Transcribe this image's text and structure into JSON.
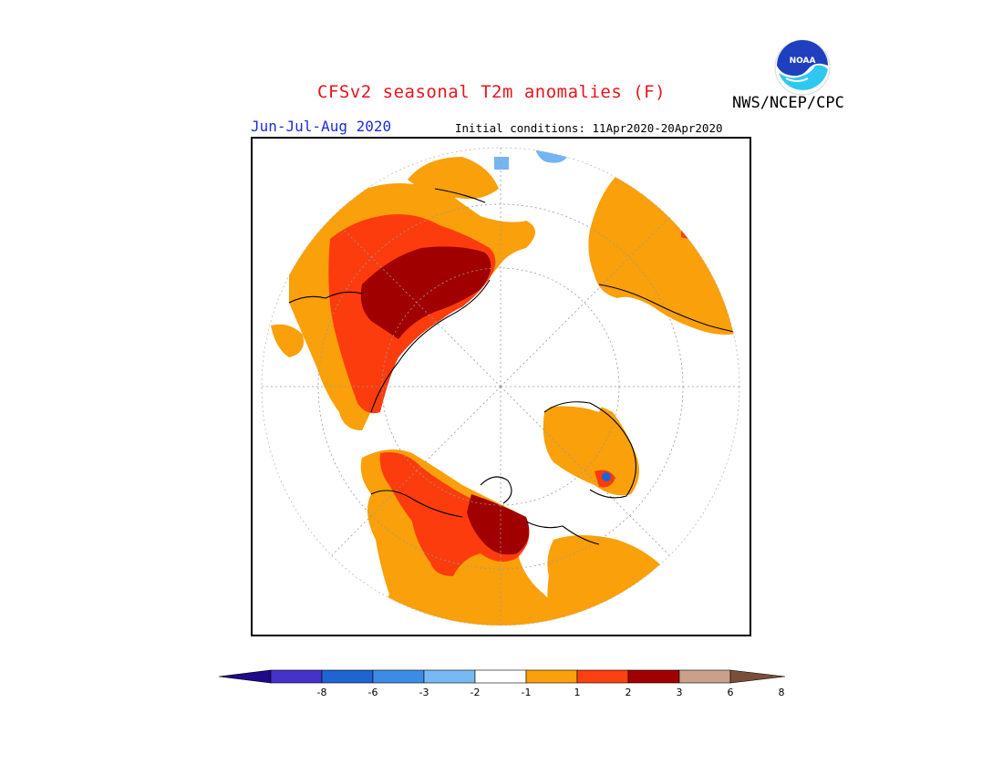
{
  "title": "CFSv2 seasonal T2m anomalies (F)",
  "agency": "NWS/NCEP/CPC",
  "logo_text": "NOAA",
  "period": "Jun-Jul-Aug 2020",
  "initial_conditions": "Initial conditions: 11Apr2020-20Apr2020",
  "colors": {
    "title": "#e8141c",
    "period": "#1c2be0",
    "warm1": "#f9a00a",
    "warm2": "#fc3c0c",
    "warm3": "#a00000",
    "cool1": "#74b4f2"
  },
  "legend": {
    "colors": [
      "#1e0a8c",
      "#4532c8",
      "#1e64d2",
      "#3c8ce6",
      "#78b9f5",
      "#ffffff",
      "#faa00a",
      "#fc4010",
      "#a00000",
      "#c8a08c",
      "#7a4e3a"
    ],
    "ticks": [
      "-8",
      "-6",
      "-3",
      "-2",
      "-1",
      "1",
      "2",
      "3",
      "6",
      "8"
    ]
  }
}
